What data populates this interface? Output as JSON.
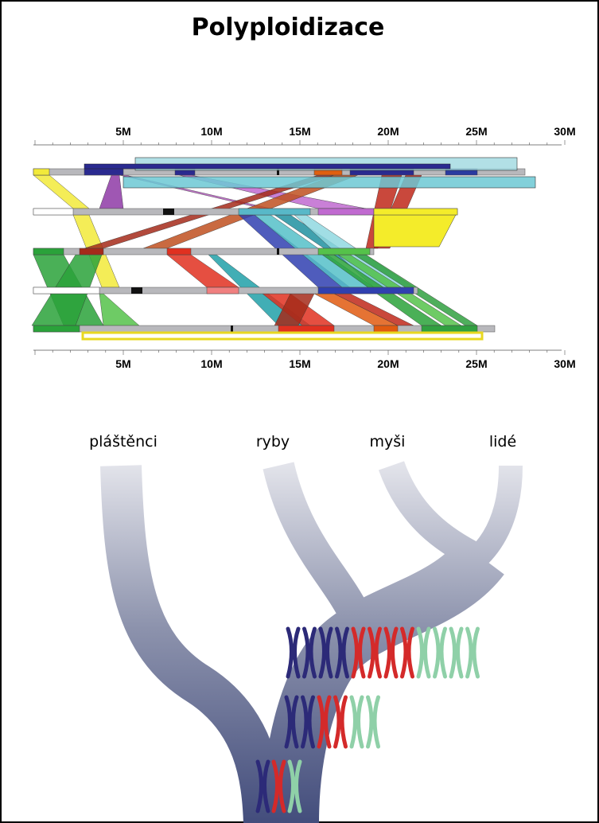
{
  "title": "Polyploidizace",
  "axis": {
    "labels": [
      "5M",
      "10M",
      "15M",
      "20M",
      "25M",
      "30M"
    ]
  },
  "tree": {
    "leaves": [
      "pláštěnci",
      "ryby",
      "myši",
      "lidé"
    ]
  }
}
